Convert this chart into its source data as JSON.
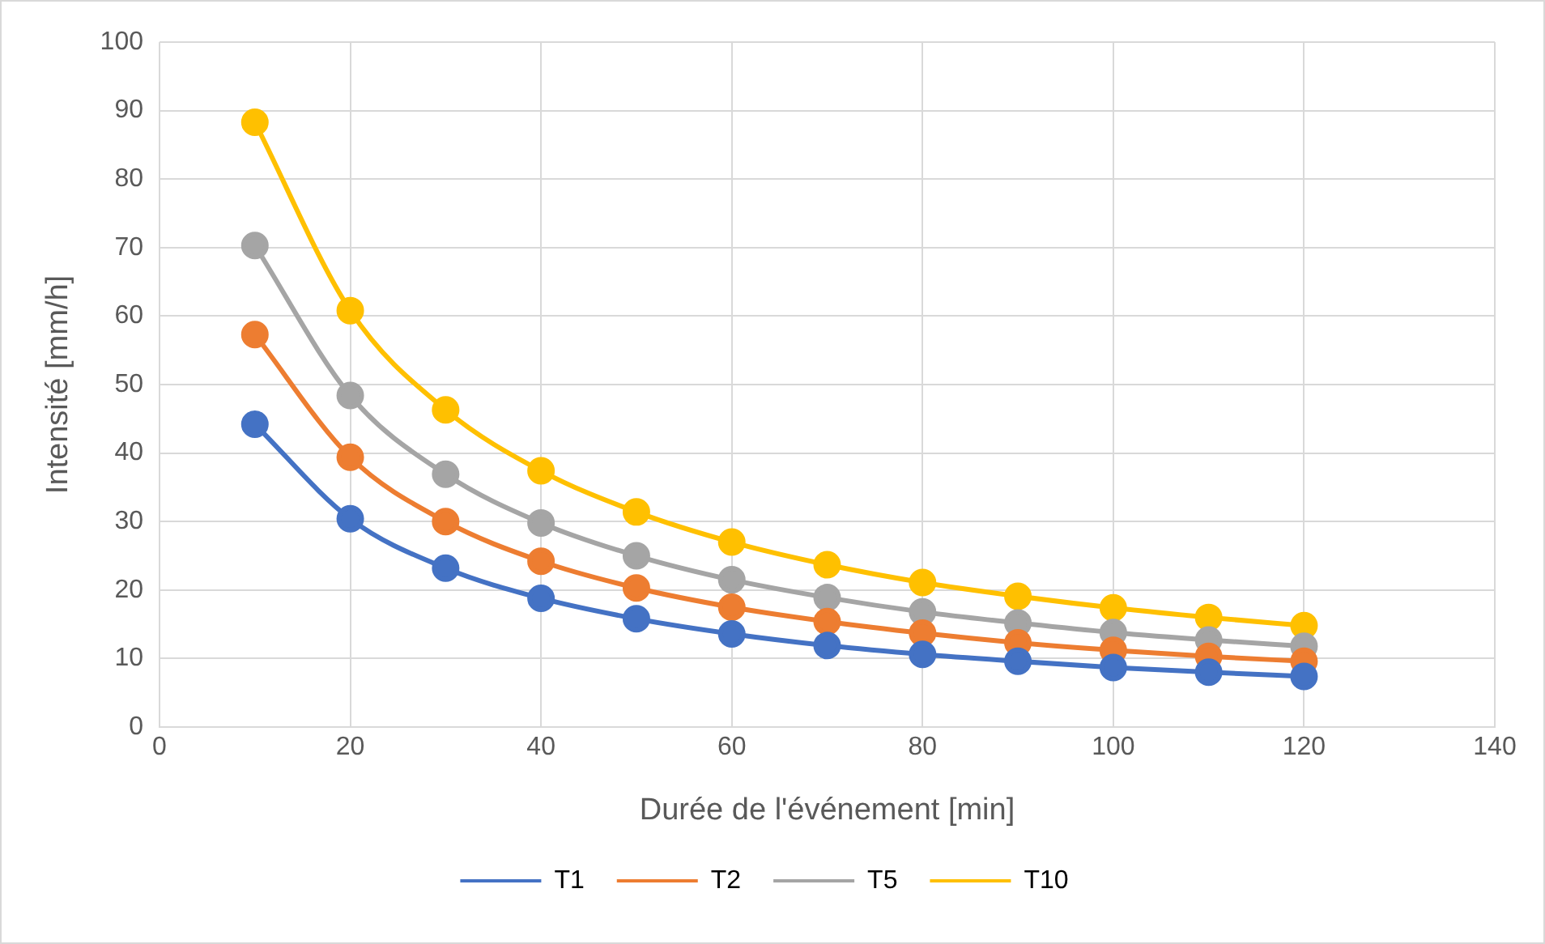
{
  "chart_data": {
    "type": "line",
    "xlabel": "Durée de l'événement [min]",
    "ylabel": "Intensité [mm/h]",
    "x": [
      10,
      20,
      30,
      40,
      50,
      60,
      70,
      80,
      90,
      100,
      110,
      120
    ],
    "series": [
      {
        "name": "T1",
        "color": "#4472c4",
        "values": [
          44.2,
          30.4,
          23.2,
          18.8,
          15.8,
          13.6,
          11.9,
          10.6,
          9.6,
          8.7,
          8.0,
          7.4
        ]
      },
      {
        "name": "T2",
        "color": "#ed7d31",
        "values": [
          57.3,
          39.4,
          30.0,
          24.2,
          20.3,
          17.5,
          15.4,
          13.7,
          12.3,
          11.2,
          10.3,
          9.6
        ]
      },
      {
        "name": "T5",
        "color": "#a5a5a5",
        "values": [
          70.3,
          48.4,
          36.9,
          29.8,
          25.0,
          21.5,
          18.9,
          16.8,
          15.2,
          13.8,
          12.7,
          11.8
        ]
      },
      {
        "name": "T10",
        "color": "#ffc000",
        "values": [
          88.3,
          60.8,
          46.3,
          37.4,
          31.4,
          27.0,
          23.7,
          21.1,
          19.1,
          17.4,
          16.0,
          14.8
        ]
      }
    ],
    "xlim": [
      0,
      140
    ],
    "xticks": [
      0,
      20,
      40,
      60,
      80,
      100,
      120,
      140
    ],
    "ylim": [
      0,
      100
    ],
    "yticks": [
      0,
      10,
      20,
      30,
      40,
      50,
      60,
      70,
      80,
      90,
      100
    ],
    "grid": true,
    "legend": "bottom",
    "marker": "circle",
    "line_style": "solid"
  }
}
